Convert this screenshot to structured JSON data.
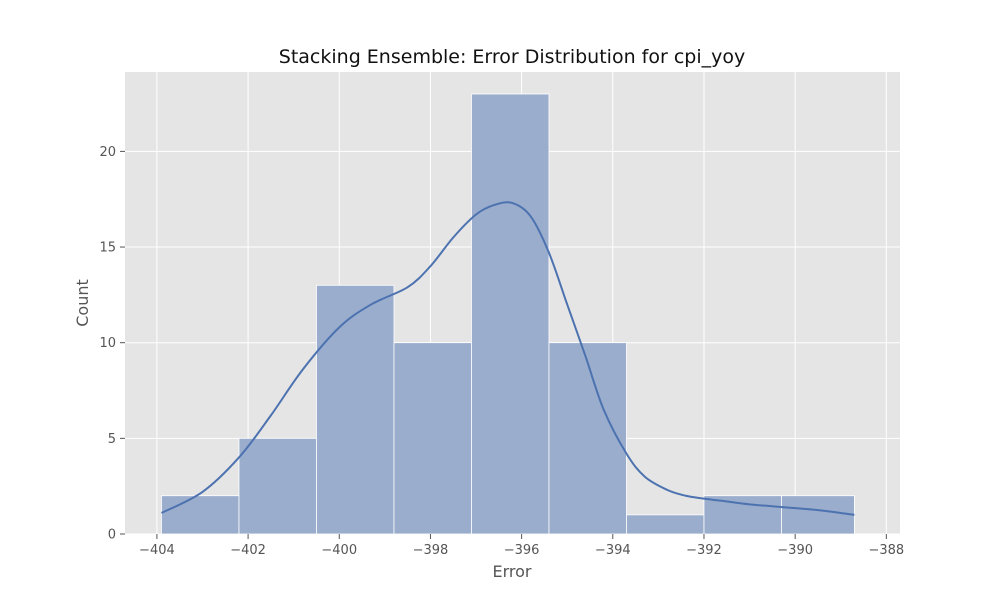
{
  "chart_data": {
    "type": "bar",
    "title": "Stacking Ensemble: Error Distribution for cpi_yoy",
    "xlabel": "Error",
    "ylabel": "Count",
    "xlim": [
      -404.7,
      -387.7
    ],
    "ylim": [
      0,
      24.15
    ],
    "xticks": [
      -404,
      -402,
      -400,
      -398,
      -396,
      -394,
      -392,
      -390,
      -388
    ],
    "yticks": [
      0,
      5,
      10,
      15,
      20
    ],
    "grid": true,
    "legend": "none",
    "bins": [
      {
        "x0": -403.9,
        "x1": -402.2,
        "count": 2
      },
      {
        "x0": -402.2,
        "x1": -400.5,
        "count": 5
      },
      {
        "x0": -400.5,
        "x1": -398.8,
        "count": 13
      },
      {
        "x0": -398.8,
        "x1": -397.1,
        "count": 10
      },
      {
        "x0": -397.1,
        "x1": -395.4,
        "count": 23
      },
      {
        "x0": -395.4,
        "x1": -393.7,
        "count": 10
      },
      {
        "x0": -393.7,
        "x1": -392.0,
        "count": 1
      },
      {
        "x0": -392.0,
        "x1": -390.3,
        "count": 2
      },
      {
        "x0": -390.3,
        "x1": -388.7,
        "count": 2
      }
    ],
    "kde": {
      "x": [
        -403.9,
        -403.0,
        -402.2,
        -401.5,
        -400.8,
        -400.0,
        -399.3,
        -398.5,
        -398.0,
        -397.5,
        -397.0,
        -396.6,
        -396.2,
        -395.8,
        -395.4,
        -395.0,
        -394.6,
        -394.2,
        -393.7,
        -393.3,
        -392.8,
        -392.4,
        -392.0,
        -391.5,
        -391.0,
        -390.5,
        -390.0,
        -389.5,
        -389.0,
        -388.7
      ],
      "y": [
        1.1,
        2.2,
        4.0,
        6.2,
        8.6,
        10.8,
        12.0,
        12.9,
        14.0,
        15.5,
        16.7,
        17.2,
        17.3,
        16.6,
        14.7,
        12.0,
        9.3,
        6.5,
        4.2,
        3.0,
        2.3,
        2.0,
        1.85,
        1.7,
        1.55,
        1.45,
        1.35,
        1.25,
        1.1,
        1.0
      ]
    },
    "colors": {
      "background": "#e5e5e5",
      "grid": "#ffffff",
      "bar": "#9aadcd",
      "bar_edge": "#ffffff",
      "kde": "#4c72b0"
    }
  }
}
